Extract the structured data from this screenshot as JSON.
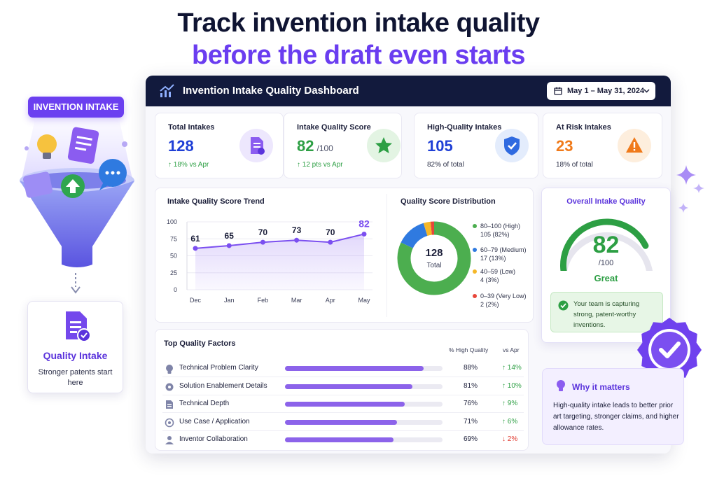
{
  "hero": {
    "line1": "Track invention intake quality",
    "line2": "before the draft even starts"
  },
  "illustration": {
    "pill_label": "INVENTION INTAKE",
    "card_title": "Quality Intake",
    "card_subtitle": "Stronger patents start here"
  },
  "dashboard": {
    "title": "Invention Intake Quality Dashboard",
    "date_range": "May 1 – May 31, 2024"
  },
  "kpis": [
    {
      "label": "Total Intakes",
      "value": "128",
      "unit": "",
      "delta": "↑ 18% vs Apr",
      "color": "#1f3fd6",
      "icon": "document-icon"
    },
    {
      "label": "Intake Quality Score",
      "value": "82",
      "unit": "/100",
      "delta": "↑ 12 pts vs Apr",
      "color": "#2d9f44",
      "icon": "star-icon"
    },
    {
      "label": "High-Quality Intakes",
      "value": "105",
      "unit": "",
      "delta": "82% of total",
      "color": "#1f3fd6",
      "icon": "shield-check-icon"
    },
    {
      "label": "At Risk Intakes",
      "value": "23",
      "unit": "",
      "delta": "18% of total",
      "color": "#f07a1a",
      "icon": "warning-icon"
    }
  ],
  "chart_data": [
    {
      "type": "area",
      "title": "Intake Quality Score Trend",
      "categories": [
        "Dec",
        "Jan",
        "Feb",
        "Mar",
        "Apr",
        "May"
      ],
      "values": [
        61,
        65,
        70,
        73,
        70,
        82
      ],
      "ylim": [
        0,
        100
      ],
      "yticks": [
        0,
        25,
        50,
        75,
        100
      ],
      "grid": true,
      "color": "#7b4ff0"
    },
    {
      "type": "pie",
      "title": "Quality Score Distribution",
      "center_value": "128",
      "center_label": "Total",
      "slices": [
        {
          "label": "80–100 (High)",
          "value": 105,
          "detail": "105 (82%)",
          "color": "#4cae4f"
        },
        {
          "label": "60–79 (Medium)",
          "value": 17,
          "detail": "17 (13%)",
          "color": "#2f7ae0"
        },
        {
          "label": "40–59 (Low)",
          "value": 4,
          "detail": "4 (3%)",
          "color": "#f5b728"
        },
        {
          "label": "0–39 (Very Low)",
          "value": 2,
          "detail": "2 (2%)",
          "color": "#e8473a"
        }
      ]
    }
  ],
  "overall": {
    "title": "Overall Intake Quality",
    "score": "82",
    "score_value": 82,
    "unit": "/100",
    "grade": "Great",
    "note": "Your team is capturing strong, patent-worthy inventions."
  },
  "factors": {
    "title": "Top Quality Factors",
    "col_pct": "% High Quality",
    "col_delta": "vs Apr",
    "items": [
      {
        "name": "Technical Problem Clarity",
        "pct": "88%",
        "value": 88,
        "delta": "↑ 14%",
        "up": true,
        "icon": "lightbulb-icon"
      },
      {
        "name": "Solution Enablement Details",
        "pct": "81%",
        "value": 81,
        "delta": "↑ 10%",
        "up": true,
        "icon": "gear-icon"
      },
      {
        "name": "Technical Depth",
        "pct": "76%",
        "value": 76,
        "delta": "↑ 9%",
        "up": true,
        "icon": "document-icon"
      },
      {
        "name": "Use Case / Application",
        "pct": "71%",
        "value": 71,
        "delta": "↑ 6%",
        "up": true,
        "icon": "target-icon"
      },
      {
        "name": "Inventor Collaboration",
        "pct": "69%",
        "value": 69,
        "delta": "↓ 2%",
        "up": false,
        "icon": "user-icon"
      }
    ]
  },
  "why": {
    "title": "Why it matters",
    "text": "High-quality intake leads to better prior art targeting, stronger claims, and higher allowance rates."
  }
}
